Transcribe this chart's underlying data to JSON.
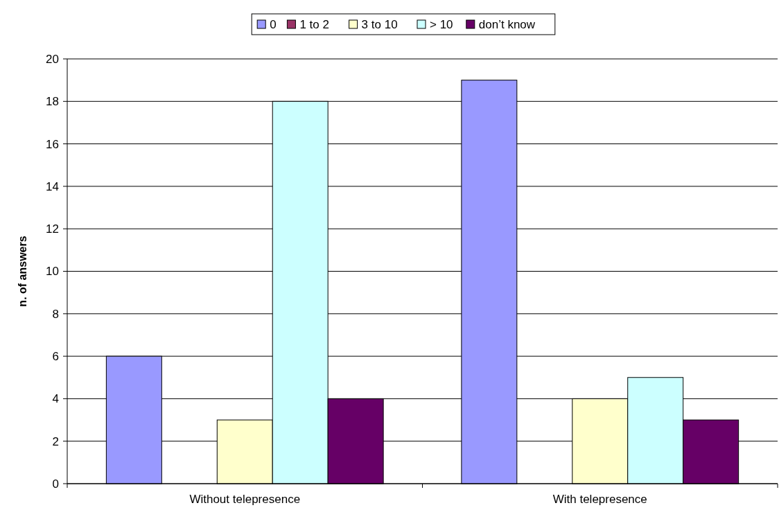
{
  "chart_data": {
    "type": "bar",
    "ylabel": "n. of answers",
    "categories": [
      "Without telepresence",
      "With telepresence"
    ],
    "series": [
      {
        "name": "0",
        "color": "#9999ff",
        "values": [
          6,
          19
        ]
      },
      {
        "name": "1 to 2",
        "color": "#993366",
        "values": [
          0,
          0
        ]
      },
      {
        "name": "3 to 10",
        "color": "#ffffcc",
        "values": [
          3,
          4
        ]
      },
      {
        "name": "> 10",
        "color": "#ccffff",
        "values": [
          18,
          5
        ]
      },
      {
        "name": "don’t know",
        "color": "#660066",
        "values": [
          4,
          3
        ]
      }
    ],
    "ylim": [
      0,
      20
    ],
    "yticks": [
      0,
      2,
      4,
      6,
      8,
      10,
      12,
      14,
      16,
      18,
      20
    ],
    "grid": "y",
    "legend": "top"
  }
}
